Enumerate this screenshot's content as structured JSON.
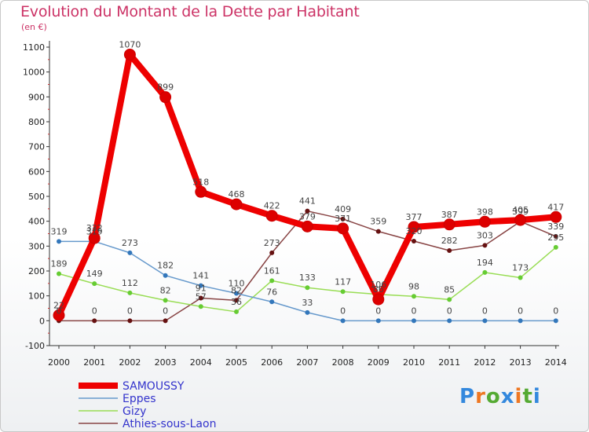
{
  "chart_data": {
    "type": "line",
    "title": "Evolution du Montant de la Dette par Habitant",
    "unit_label": "(en €)",
    "categories": [
      "2000",
      "2001",
      "2002",
      "2003",
      "2004",
      "2005",
      "2006",
      "2007",
      "2008",
      "2009",
      "2010",
      "2011",
      "2012",
      "2013",
      "2014"
    ],
    "ylim": [
      -100,
      1100
    ],
    "yticks": [
      -100,
      0,
      100,
      200,
      300,
      400,
      500,
      600,
      700,
      800,
      900,
      1000,
      1100
    ],
    "series": [
      {
        "name": "SAMOUSSY",
        "color": "#ee0000",
        "marker": "#dd0000",
        "values": [
          22,
          332,
          1070,
          899,
          518,
          468,
          422,
          379,
          371,
          86,
          377,
          387,
          398,
          405,
          417
        ]
      },
      {
        "name": "Eppes",
        "color": "#6699cc",
        "marker": "#3377bb",
        "values": [
          319,
          319,
          273,
          182,
          141,
          110,
          76,
          33,
          0,
          0,
          0,
          0,
          0,
          0,
          0
        ]
      },
      {
        "name": "Gizy",
        "color": "#99dd55",
        "marker": "#66cc33",
        "values": [
          189,
          149,
          112,
          82,
          57,
          36,
          161,
          133,
          117,
          106,
          98,
          85,
          194,
          173,
          295
        ]
      },
      {
        "name": "Athies-sous-Laon",
        "color": "#884444",
        "marker": "#661111",
        "values": [
          0,
          0,
          0,
          0,
          91,
          82,
          273,
          441,
          409,
          359,
          320,
          282,
          303,
          399,
          339
        ]
      }
    ],
    "data_labels": {
      "SAMOUSSY": [
        "22",
        "332",
        "1070",
        "899",
        "518",
        "468",
        "422",
        "379",
        "371",
        "86",
        "377",
        "387",
        "398",
        "405",
        "417"
      ],
      "Eppes": [
        "319",
        "319",
        "273",
        "182",
        "141",
        "110",
        "76",
        "33",
        "0",
        "0",
        "0",
        "0",
        "0",
        "0",
        "0"
      ],
      "Gizy": [
        "189",
        "149",
        "112",
        "82",
        "57",
        "36",
        "161",
        "133",
        "117",
        "106",
        "98",
        "85",
        "194",
        "173",
        "295"
      ],
      "Athies-sous-Laon": [
        "0",
        "0",
        "0",
        "0",
        "91",
        "82",
        "273",
        "441",
        "409",
        "359",
        "320",
        "282",
        "303",
        "399",
        "339"
      ]
    },
    "legend_position": "bottom-left",
    "grid": false
  },
  "logo": {
    "text": "Proxiti"
  }
}
